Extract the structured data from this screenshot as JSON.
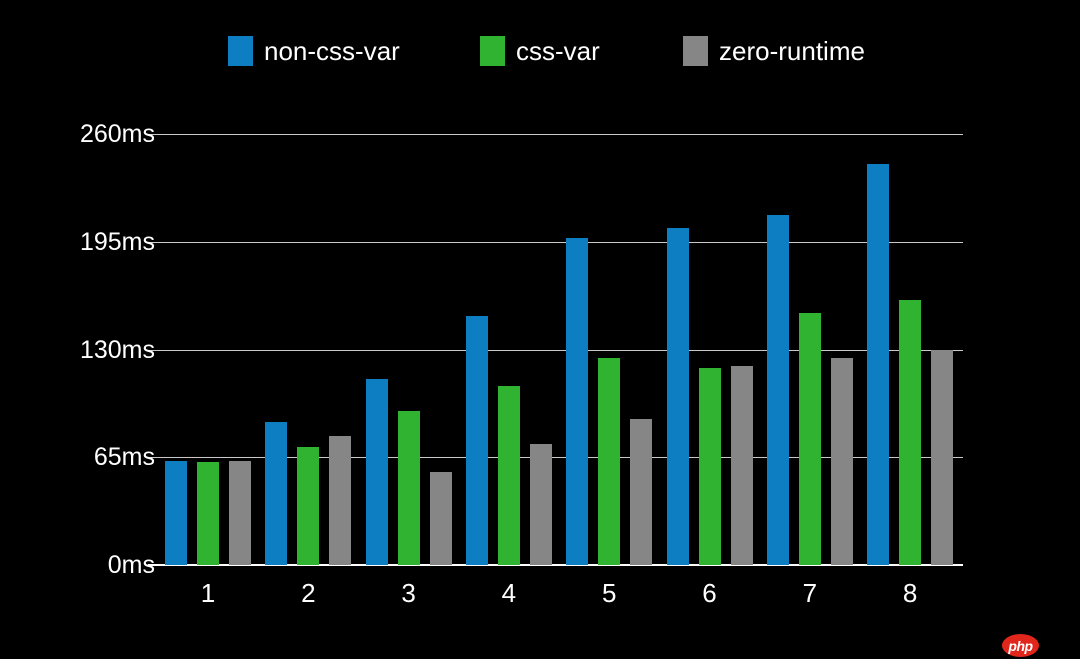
{
  "chart_data": {
    "type": "bar",
    "title": "",
    "xlabel": "",
    "ylabel": "",
    "unit": "ms",
    "background": "#000000",
    "grid": true,
    "legend_position": "top",
    "categories": [
      "1",
      "2",
      "3",
      "4",
      "5",
      "6",
      "7",
      "8"
    ],
    "series": [
      {
        "name": "non-css-var",
        "color": "#0e7ec2",
        "values": [
          63,
          86,
          112,
          150,
          197,
          203,
          211,
          242
        ]
      },
      {
        "name": "css-var",
        "color": "#2fb331",
        "values": [
          62,
          71,
          93,
          108,
          125,
          119,
          152,
          160
        ]
      },
      {
        "name": "zero-runtime",
        "color": "#868686",
        "values": [
          63,
          78,
          56,
          73,
          88,
          120,
          125,
          130
        ]
      }
    ],
    "ylim": [
      0,
      260
    ],
    "yticks": [
      {
        "value": 0,
        "label": "0ms"
      },
      {
        "value": 65,
        "label": "65ms"
      },
      {
        "value": 130,
        "label": "130ms"
      },
      {
        "value": 195,
        "label": "195ms"
      },
      {
        "value": 260,
        "label": "260ms"
      }
    ]
  },
  "watermark": {
    "label": "php",
    "color": "#e1261c"
  }
}
